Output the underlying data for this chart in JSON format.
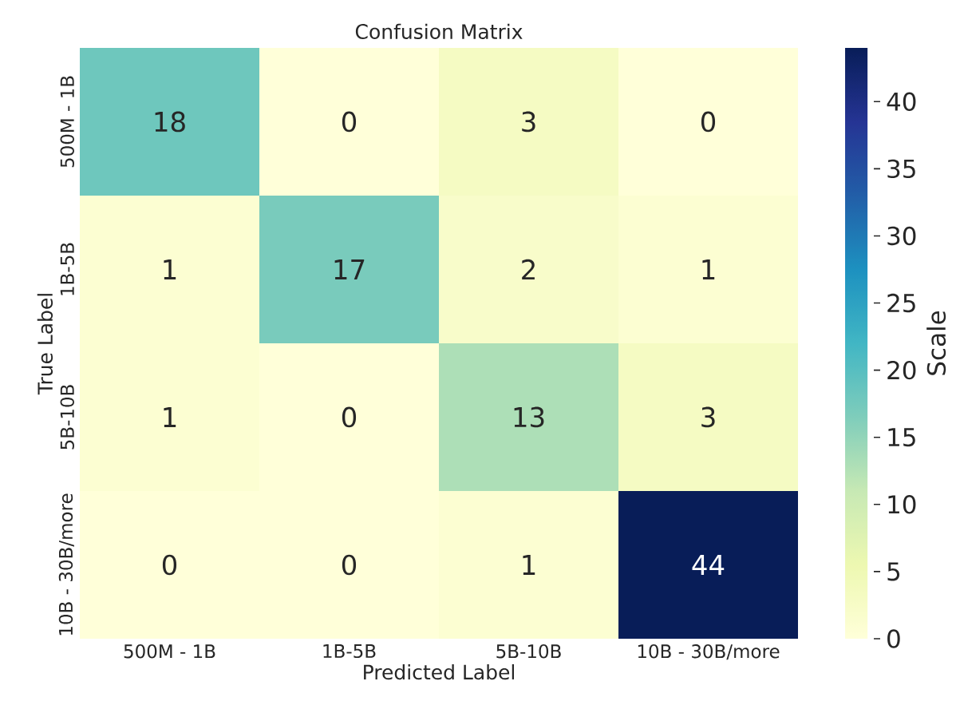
{
  "chart_data": {
    "type": "heatmap",
    "title": "Confusion Matrix",
    "xlabel": "Predicted Label",
    "ylabel": "True Label",
    "clabel": "Scale",
    "categories": [
      "500M - 1B",
      "1B-5B",
      "5B-10B",
      "10B - 30B/more"
    ],
    "y_categories": [
      "500M - 1B",
      "1B-5B",
      "5B-10B",
      "10B - 30B/more"
    ],
    "cells": [
      [
        18,
        0,
        3,
        0
      ],
      [
        1,
        17,
        2,
        1
      ],
      [
        1,
        0,
        13,
        3
      ],
      [
        0,
        0,
        1,
        44
      ]
    ],
    "clim": [
      0,
      44
    ],
    "cticks": [
      0,
      5,
      10,
      15,
      20,
      25,
      30,
      35,
      40
    ],
    "data_labels": true
  }
}
